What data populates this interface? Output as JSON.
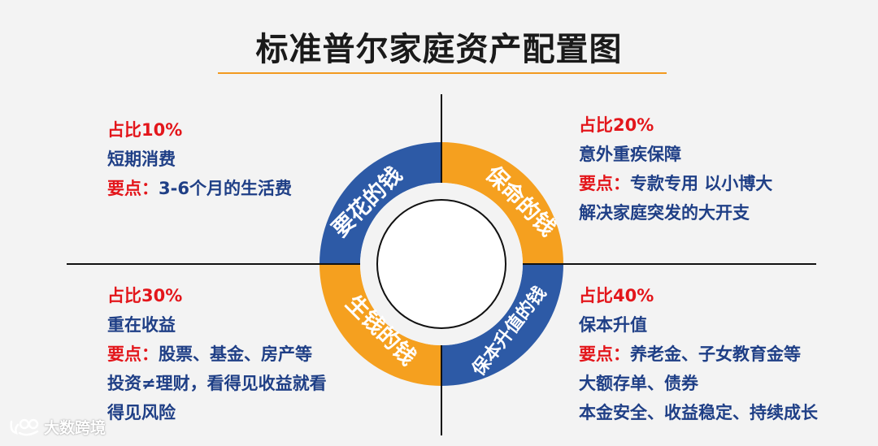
{
  "title": "标准普尔家庭资产配置图",
  "colors": {
    "blue": "#2d5aa6",
    "orange": "#f5a01f",
    "red": "#e3161b",
    "text_blue": "#1f3f86",
    "underline": "#f29a1f"
  },
  "ring": {
    "top_left": "要花的钱",
    "top_right": "保命的钱",
    "bottom_left": "生钱的钱",
    "bottom_right": "保本升值的钱"
  },
  "quadrants": {
    "top_left": {
      "ratio": "占比10%",
      "desc": "短期消费",
      "key_label": "要点：",
      "key_text": "3-6个月的生活费"
    },
    "top_right": {
      "ratio": "占比20%",
      "desc": "意外重疾保障",
      "key_label": "要点：",
      "key_text": "专款专用 以小博大",
      "extra": "解决家庭突发的大开支"
    },
    "bottom_left": {
      "ratio": "占比30%",
      "desc": "重在收益",
      "key_label": "要点：",
      "key_text": "股票、基金、房产等",
      "extra1": "投资≠理财，看得见收益就看",
      "extra2": "得见风险"
    },
    "bottom_right": {
      "ratio": "占比40%",
      "desc": "保本升值",
      "key_label": "要点：",
      "key_text": "养老金、子女教育金等",
      "extra1": "大额存单、债券",
      "extra2": "本金安全、收益稳定、持续成长"
    }
  },
  "watermark": "大数跨境"
}
